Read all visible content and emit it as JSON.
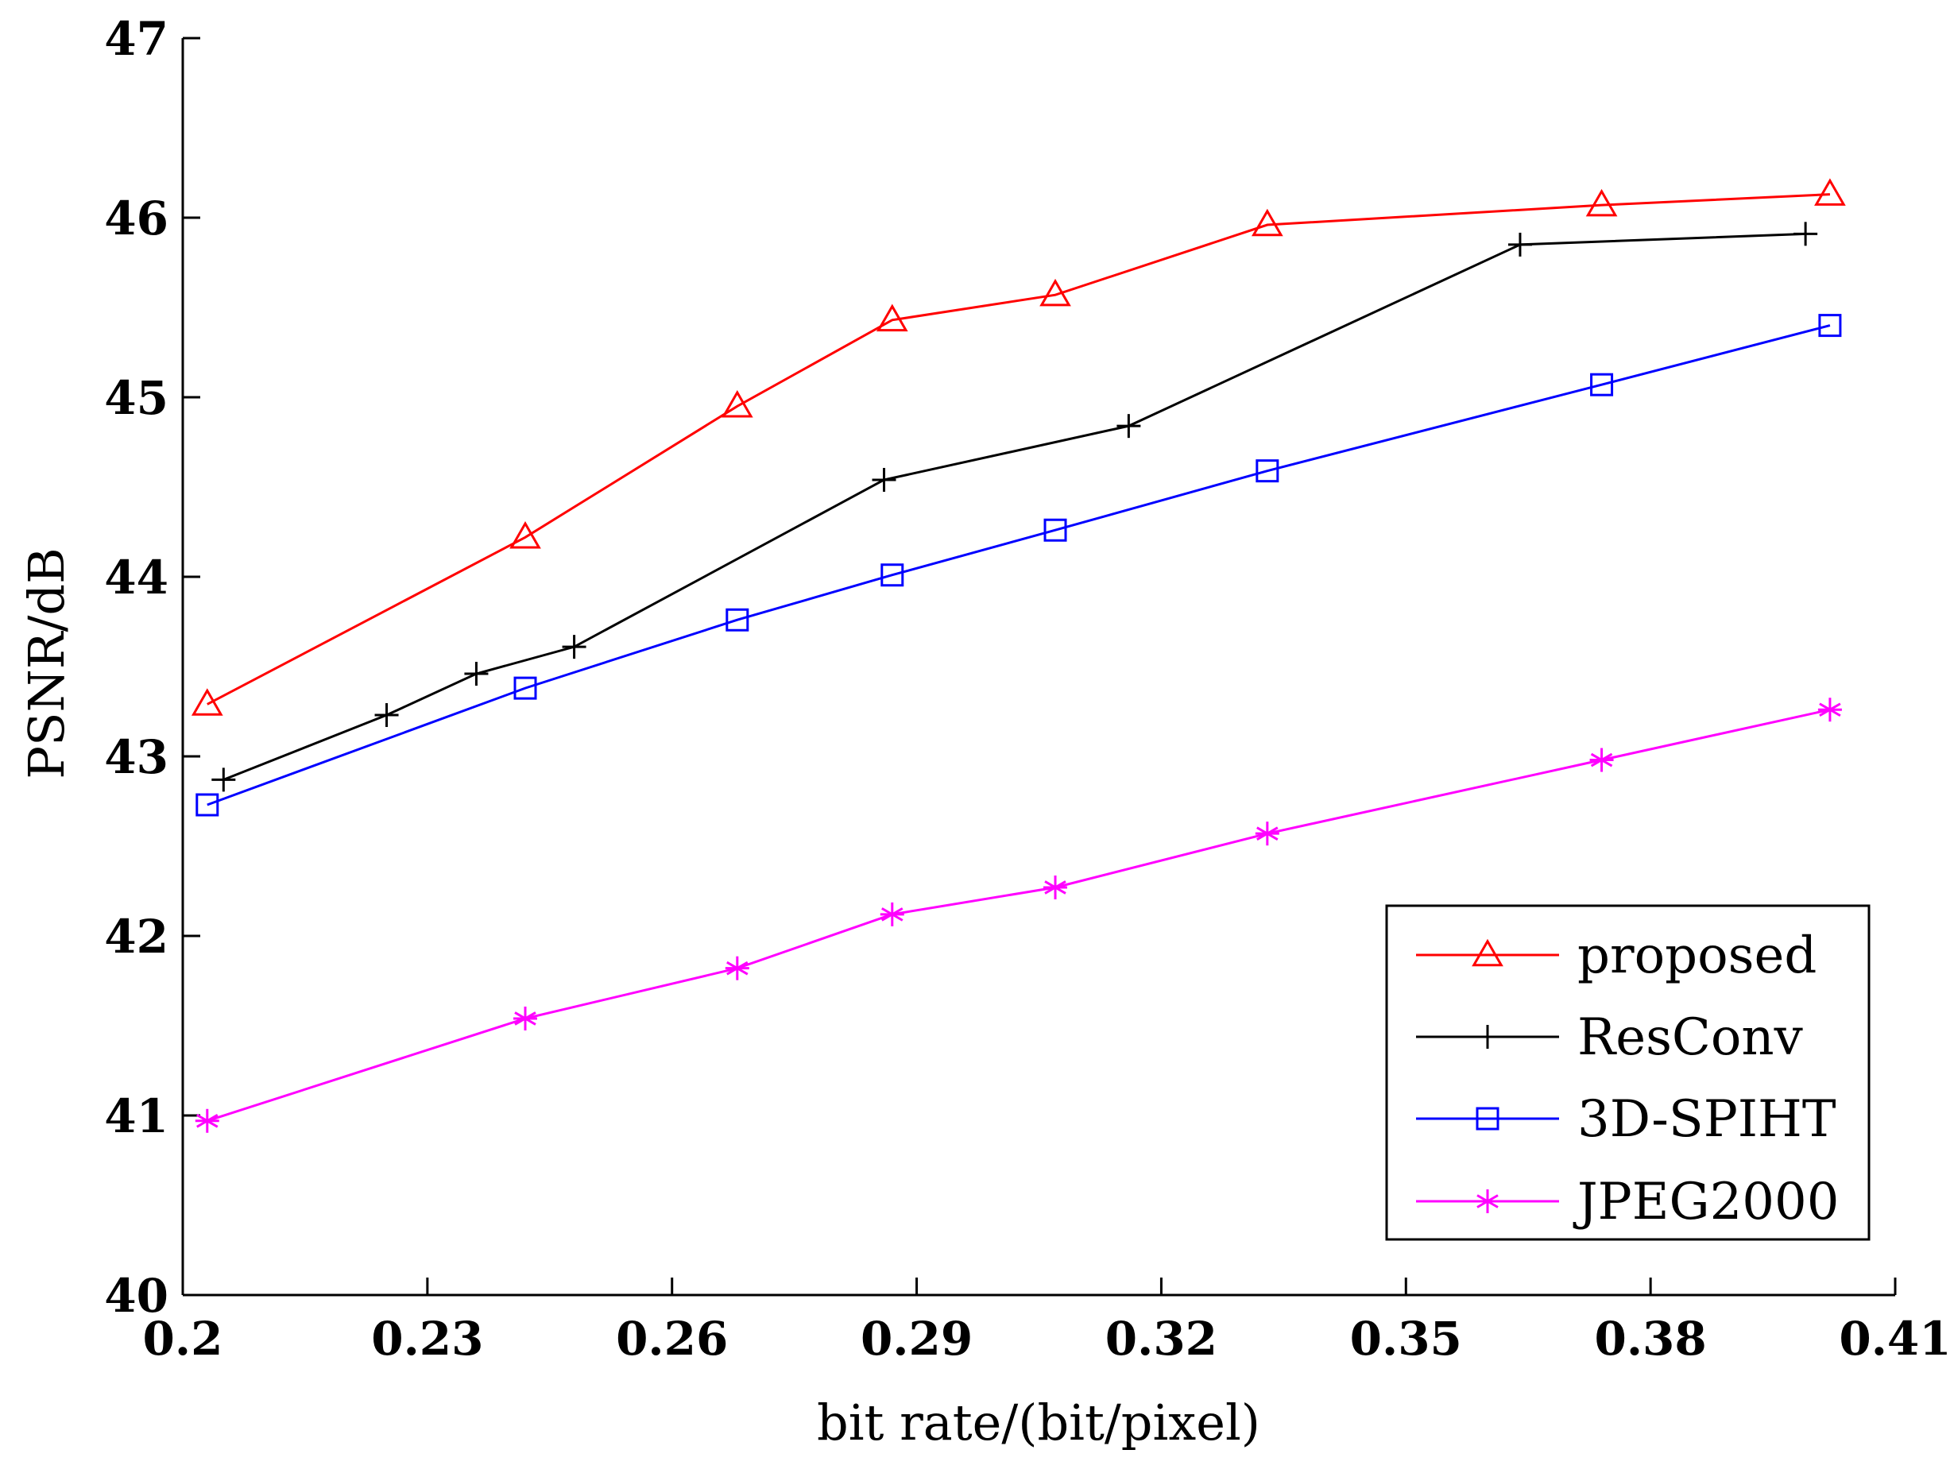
{
  "chart_data": {
    "type": "line",
    "title": "",
    "xlabel": "bit rate/(bit/pixel)",
    "ylabel": "PSNR/dB",
    "xlim": [
      0.2,
      0.41
    ],
    "ylim": [
      40,
      47
    ],
    "xticks": [
      "0.2",
      "0.23",
      "0.26",
      "0.29",
      "0.32",
      "0.35",
      "0.38",
      "0.41"
    ],
    "yticks": [
      "40",
      "41",
      "42",
      "43",
      "44",
      "45",
      "46",
      "47"
    ],
    "legend_position": "bottom-right",
    "grid": false,
    "series": [
      {
        "name": "proposed",
        "color": "#ff0000",
        "marker": "triangle",
        "x": [
          0.203,
          0.242,
          0.268,
          0.287,
          0.307,
          0.333,
          0.374,
          0.402
        ],
        "y": [
          43.29,
          44.22,
          44.95,
          45.43,
          45.57,
          45.96,
          46.07,
          46.13
        ]
      },
      {
        "name": "ResConv",
        "color": "#000000",
        "marker": "plus",
        "x": [
          0.205,
          0.225,
          0.236,
          0.248,
          0.286,
          0.316,
          0.364,
          0.399
        ],
        "y": [
          42.87,
          43.23,
          43.46,
          43.61,
          44.54,
          44.84,
          45.85,
          45.91
        ]
      },
      {
        "name": "3D-SPIHT",
        "color": "#0000ff",
        "marker": "square",
        "x": [
          0.203,
          0.242,
          0.268,
          0.287,
          0.307,
          0.333,
          0.374,
          0.402
        ],
        "y": [
          42.73,
          43.38,
          43.76,
          44.01,
          44.26,
          44.59,
          45.07,
          45.4
        ]
      },
      {
        "name": "JPEG2000",
        "color": "#ff00ff",
        "marker": "asterisk",
        "x": [
          0.203,
          0.242,
          0.268,
          0.287,
          0.307,
          0.333,
          0.374,
          0.402
        ],
        "y": [
          40.97,
          41.54,
          41.82,
          42.12,
          42.27,
          42.57,
          42.98,
          43.26
        ]
      }
    ]
  }
}
